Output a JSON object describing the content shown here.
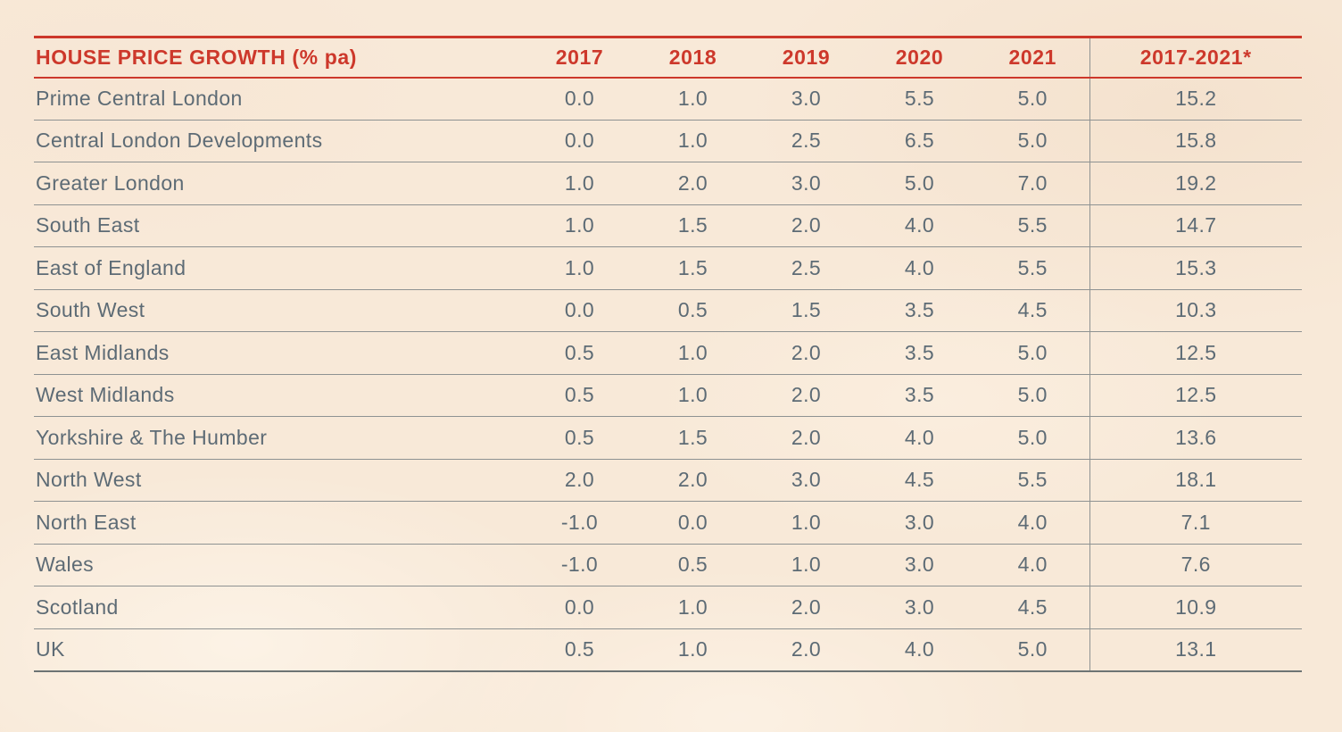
{
  "chart_data": {
    "type": "table",
    "title": "HOUSE PRICE GROWTH (% pa)",
    "columns": [
      "2017",
      "2018",
      "2019",
      "2020",
      "2021",
      "2017-2021*"
    ],
    "rows": [
      {
        "region": "Prime Central London",
        "values": [
          "0.0",
          "1.0",
          "3.0",
          "5.5",
          "5.0"
        ],
        "total": "15.2"
      },
      {
        "region": "Central London Developments",
        "values": [
          "0.0",
          "1.0",
          "2.5",
          "6.5",
          "5.0"
        ],
        "total": "15.8"
      },
      {
        "region": "Greater London",
        "values": [
          "1.0",
          "2.0",
          "3.0",
          "5.0",
          "7.0"
        ],
        "total": "19.2"
      },
      {
        "region": "South East",
        "values": [
          "1.0",
          "1.5",
          "2.0",
          "4.0",
          "5.5"
        ],
        "total": "14.7"
      },
      {
        "region": "East of England",
        "values": [
          "1.0",
          "1.5",
          "2.5",
          "4.0",
          "5.5"
        ],
        "total": "15.3"
      },
      {
        "region": "South West",
        "values": [
          "0.0",
          "0.5",
          "1.5",
          "3.5",
          "4.5"
        ],
        "total": "10.3"
      },
      {
        "region": "East Midlands",
        "values": [
          "0.5",
          "1.0",
          "2.0",
          "3.5",
          "5.0"
        ],
        "total": "12.5"
      },
      {
        "region": "West Midlands",
        "values": [
          "0.5",
          "1.0",
          "2.0",
          "3.5",
          "5.0"
        ],
        "total": "12.5"
      },
      {
        "region": "Yorkshire & The Humber",
        "values": [
          "0.5",
          "1.5",
          "2.0",
          "4.0",
          "5.0"
        ],
        "total": "13.6"
      },
      {
        "region": "North West",
        "values": [
          "2.0",
          "2.0",
          "3.0",
          "4.5",
          "5.5"
        ],
        "total": "18.1"
      },
      {
        "region": "North East",
        "values": [
          "-1.0",
          "0.0",
          "1.0",
          "3.0",
          "4.0"
        ],
        "total": "7.1"
      },
      {
        "region": "Wales",
        "values": [
          "-1.0",
          "0.5",
          "1.0",
          "3.0",
          "4.0"
        ],
        "total": "7.6"
      },
      {
        "region": "Scotland",
        "values": [
          "0.0",
          "1.0",
          "2.0",
          "3.0",
          "4.5"
        ],
        "total": "10.9"
      },
      {
        "region": "UK",
        "values": [
          "0.5",
          "1.0",
          "2.0",
          "4.0",
          "5.0"
        ],
        "total": "13.1"
      }
    ],
    "layout": {
      "header_rule_color": "#cd382b",
      "row_divider_color": "#8e9292",
      "column_separator_before": "2017-2021*",
      "grid": "horizontal-rules"
    }
  },
  "colors": {
    "accent_red": "#cd382b",
    "text_gray": "#5d6b75",
    "line_gray": "#8e9292",
    "background_cream": "#f8e9d8"
  }
}
